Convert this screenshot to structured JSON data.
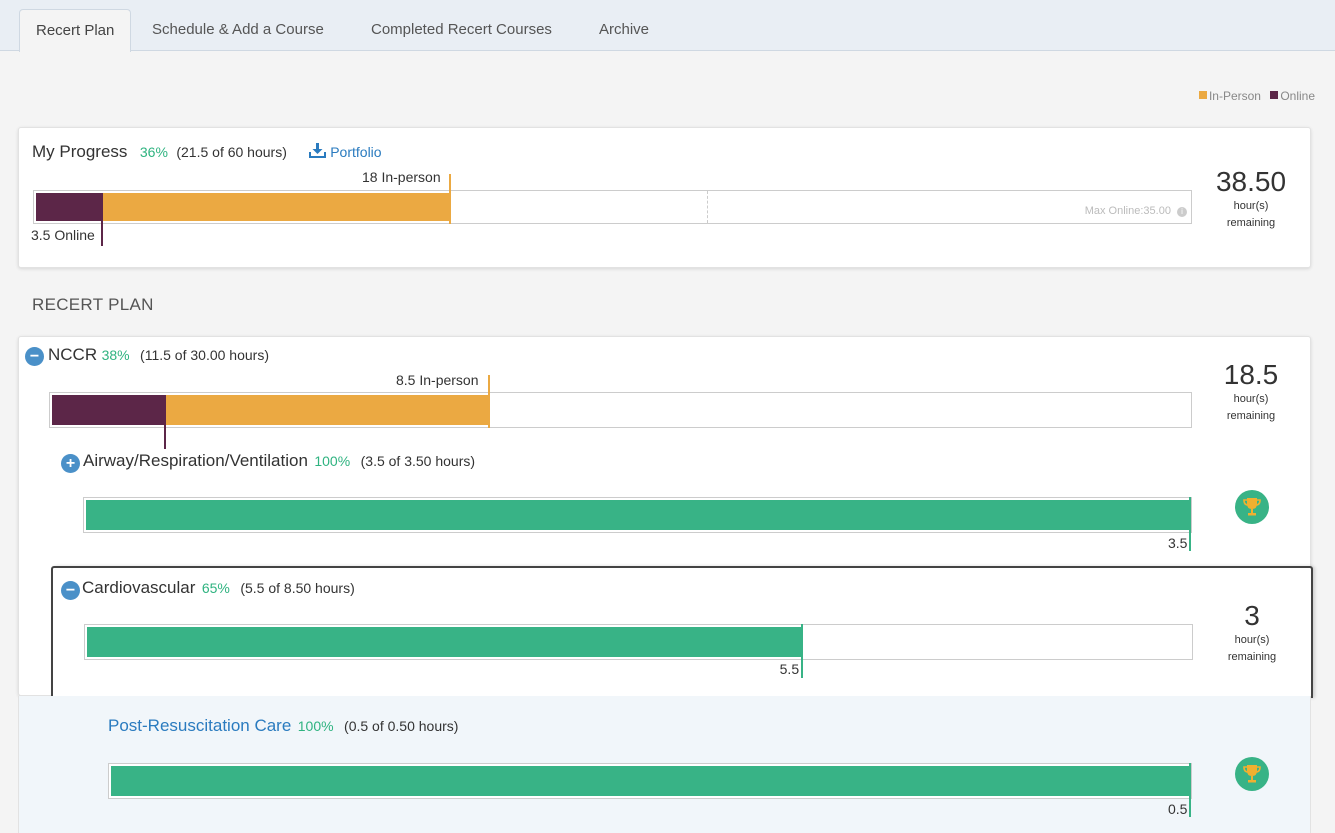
{
  "tabs": [
    {
      "label": "Recert Plan"
    },
    {
      "label": "Schedule & Add a Course"
    },
    {
      "label": "Completed Recert Courses"
    },
    {
      "label": "Archive"
    }
  ],
  "legend": {
    "inperson": "In-Person",
    "online": "Online"
  },
  "colors": {
    "online": "#5c2648",
    "inperson": "#eba942",
    "complete": "#38b386",
    "accent": "#2a7bbf"
  },
  "progress": {
    "title": "My Progress",
    "pct": "36%",
    "hours": "(21.5 of 60 hours)",
    "portfolio": "Portfolio",
    "inperson_label": "18 In-person",
    "online_label": "3.5 Online",
    "max_online": "Max Online:35.00",
    "remaining_num": "38.50",
    "remaining_unit1": "hour(s)",
    "remaining_unit2": "remaining",
    "online_hours": 3.5,
    "inperson_hours": 18,
    "total_hours": 60
  },
  "section_title": "RECERT PLAN",
  "nccr": {
    "title": "NCCR",
    "pct": "38%",
    "hours": "(11.5 of 30.00 hours)",
    "inperson_label": "8.5 In-person",
    "remaining_num": "18.5",
    "remaining_unit1": "hour(s)",
    "remaining_unit2": "remaining",
    "online_hours": 3,
    "inperson_hours": 8.5,
    "total_hours": 30
  },
  "airway": {
    "title": "Airway/Respiration/Ventilation",
    "pct": "100%",
    "hours": "(3.5 of 3.50 hours)",
    "value_label": "3.5",
    "fraction": 1.0
  },
  "cardio": {
    "title": "Cardiovascular",
    "pct": "65%",
    "hours": "(5.5 of 8.50 hours)",
    "value_label": "5.5",
    "remaining_num": "3",
    "remaining_unit1": "hour(s)",
    "remaining_unit2": "remaining",
    "fraction": 0.647
  },
  "postresus": {
    "title": "Post-Resuscitation Care",
    "pct": "100%",
    "hours": "(0.5 of 0.50 hours)",
    "value_label": "0.5",
    "fraction": 1.0
  },
  "icons": {
    "collapse": "minus-circle-icon",
    "expand": "plus-circle-icon",
    "trophy": "trophy-icon",
    "download": "download-icon",
    "info": "info-icon"
  }
}
